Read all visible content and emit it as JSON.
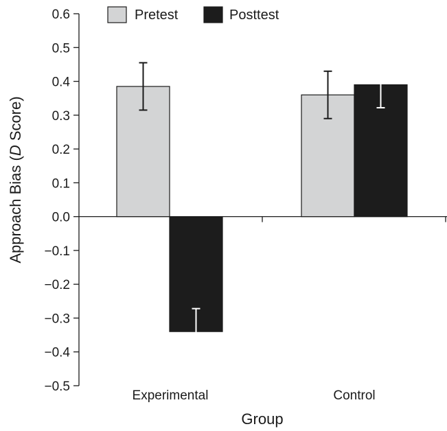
{
  "chart_data": {
    "type": "bar",
    "title": "",
    "xlabel": "Group",
    "ylabel_prefix": "Approach Bias (",
    "ylabel_italic": "D",
    "ylabel_suffix": " Score)",
    "ylim": [
      -0.5,
      0.6
    ],
    "yticks": [
      "0.6",
      "0.5",
      "0.4",
      "0.3",
      "0.2",
      "0.1",
      "0.0",
      "−0.1",
      "−0.2",
      "−0.3",
      "−0.4",
      "−0.5"
    ],
    "ytick_values": [
      0.6,
      0.5,
      0.4,
      0.3,
      0.2,
      0.1,
      0.0,
      -0.1,
      -0.2,
      -0.3,
      -0.4,
      -0.5
    ],
    "categories": [
      "Experimental",
      "Control"
    ],
    "series": [
      {
        "name": "Pretest",
        "color": "#d3d4d5",
        "values": [
          0.385,
          0.36
        ],
        "error": [
          0.07,
          0.07
        ],
        "error_bar_color": "#1a1a1a"
      },
      {
        "name": "Posttest",
        "color": "#1c1c1c",
        "values": [
          -0.34,
          0.39
        ],
        "error": [
          0.068,
          0.068
        ],
        "error_bar_color": "#ffffff"
      }
    ],
    "legend_position": "top",
    "grid": false
  }
}
